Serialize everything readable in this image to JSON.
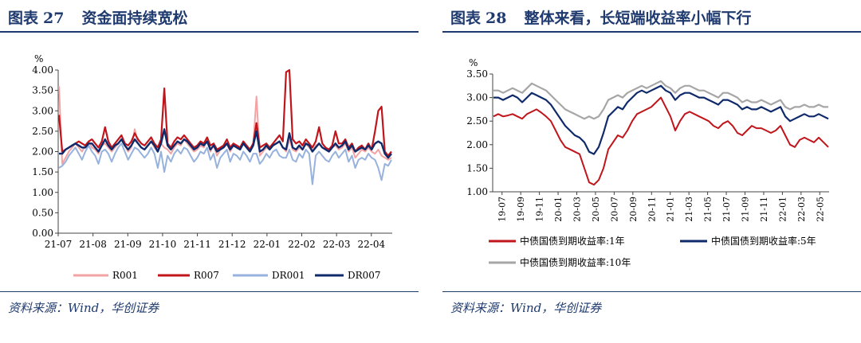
{
  "left": {
    "title_prefix": "图表",
    "title_num": "27",
    "title_text": "资金面持续宽松",
    "source": "资料来源：Wind，华创证券",
    "chart_data": {
      "type": "line",
      "ylabel": "%",
      "ylim": [
        0,
        4
      ],
      "yticks": [
        "0.00",
        "0.50",
        "1.00",
        "1.50",
        "2.00",
        "2.50",
        "3.00",
        "3.50",
        "4.00"
      ],
      "xticks": [
        "21-07",
        "21-08",
        "21-09",
        "21-10",
        "21-11",
        "21-12",
        "22-01",
        "22-02",
        "22-03",
        "22-04"
      ],
      "legend_position": "bottom",
      "series": [
        {
          "name": "R001",
          "color": "#f4a3a3",
          "width": 2,
          "values": [
            3.6,
            1.7,
            1.85,
            2.0,
            2.1,
            2.2,
            2.1,
            2.0,
            2.15,
            2.25,
            2.1,
            2.05,
            1.95,
            2.15,
            2.2,
            2.1,
            2.0,
            2.1,
            2.2,
            2.3,
            2.15,
            2.0,
            2.1,
            2.55,
            2.2,
            2.1,
            2.05,
            2.15,
            2.25,
            2.1,
            2.0,
            2.2,
            2.1,
            2.05,
            1.95,
            2.1,
            2.2,
            2.15,
            2.3,
            2.2,
            2.1,
            2.0,
            2.05,
            2.15,
            2.1,
            2.3,
            2.0,
            2.15,
            1.9,
            2.05,
            2.1,
            2.2,
            2.0,
            2.15,
            2.1,
            2.05,
            2.2,
            2.1,
            2.0,
            2.15,
            3.35,
            1.9,
            2.0,
            2.1,
            2.05,
            2.15,
            2.2,
            2.25,
            2.1,
            2.0,
            2.3,
            2.05,
            2.0,
            2.1,
            2.05,
            2.2,
            2.1,
            2.0,
            2.15,
            2.2,
            2.1,
            2.05,
            2.0,
            2.1,
            2.15,
            2.05,
            2.1,
            2.2,
            2.0,
            2.1,
            1.85,
            1.95,
            2.05,
            2.0,
            2.1,
            2.0,
            1.95,
            2.05,
            1.9,
            1.85,
            1.8,
            1.85
          ]
        },
        {
          "name": "R007",
          "color": "#c0151b",
          "width": 2.2,
          "values": [
            2.9,
            2.0,
            2.05,
            2.1,
            2.15,
            2.2,
            2.25,
            2.2,
            2.15,
            2.25,
            2.3,
            2.2,
            2.1,
            2.25,
            2.6,
            2.25,
            2.1,
            2.2,
            2.3,
            2.4,
            2.2,
            2.15,
            2.25,
            2.45,
            2.3,
            2.2,
            2.15,
            2.25,
            2.35,
            2.2,
            2.1,
            2.3,
            3.55,
            2.2,
            2.1,
            2.25,
            2.35,
            2.3,
            2.4,
            2.3,
            2.2,
            2.1,
            2.15,
            2.25,
            2.2,
            2.35,
            2.15,
            2.2,
            2.05,
            2.1,
            2.15,
            2.3,
            2.1,
            2.2,
            2.15,
            2.1,
            2.25,
            2.15,
            2.05,
            2.2,
            2.7,
            2.1,
            2.15,
            2.2,
            2.1,
            2.2,
            2.3,
            2.4,
            2.25,
            3.95,
            4.0,
            2.3,
            2.2,
            2.25,
            2.15,
            2.3,
            2.2,
            2.1,
            2.25,
            2.6,
            2.2,
            2.1,
            2.05,
            2.15,
            2.5,
            2.2,
            2.2,
            2.3,
            2.1,
            2.2,
            2.0,
            2.1,
            2.15,
            2.05,
            2.2,
            2.05,
            2.5,
            3.0,
            3.1,
            2.0,
            1.9,
            2.0
          ]
        },
        {
          "name": "DR001",
          "color": "#97b2dd",
          "width": 2,
          "values": [
            1.6,
            1.65,
            1.75,
            1.9,
            2.0,
            2.1,
            1.95,
            1.8,
            2.0,
            2.15,
            2.0,
            1.9,
            1.7,
            2.0,
            2.05,
            1.95,
            1.75,
            1.95,
            2.1,
            2.2,
            2.0,
            1.8,
            1.95,
            2.1,
            2.05,
            1.95,
            1.85,
            1.95,
            2.1,
            1.95,
            1.6,
            2.0,
            1.5,
            1.9,
            1.75,
            1.95,
            2.05,
            1.95,
            2.1,
            2.05,
            1.9,
            1.75,
            1.85,
            2.0,
            1.95,
            2.1,
            1.8,
            1.95,
            1.6,
            1.85,
            1.95,
            2.05,
            1.75,
            1.95,
            1.9,
            1.8,
            2.0,
            1.9,
            1.75,
            1.95,
            1.95,
            1.7,
            1.8,
            1.95,
            1.85,
            2.0,
            2.05,
            1.9,
            1.85,
            1.85,
            2.05,
            1.8,
            1.75,
            1.95,
            1.85,
            2.05,
            1.95,
            1.2,
            1.9,
            2.0,
            1.9,
            1.8,
            1.75,
            1.9,
            2.0,
            1.85,
            1.95,
            2.05,
            1.75,
            1.9,
            1.6,
            1.8,
            1.85,
            1.8,
            1.95,
            1.85,
            1.8,
            1.6,
            1.3,
            1.7,
            1.65,
            1.8
          ]
        },
        {
          "name": "DR007",
          "color": "#0f2a6b",
          "width": 2.4,
          "values": [
            1.95,
            1.95,
            2.05,
            2.1,
            2.15,
            2.2,
            2.15,
            2.1,
            2.1,
            2.2,
            2.2,
            2.1,
            2.0,
            2.15,
            2.3,
            2.15,
            2.05,
            2.15,
            2.2,
            2.3,
            2.15,
            2.05,
            2.15,
            2.3,
            2.2,
            2.1,
            2.05,
            2.15,
            2.25,
            2.15,
            2.0,
            2.2,
            2.55,
            2.15,
            2.05,
            2.15,
            2.25,
            2.2,
            2.3,
            2.25,
            2.15,
            2.05,
            2.1,
            2.2,
            2.15,
            2.25,
            2.05,
            2.15,
            2.0,
            2.05,
            2.1,
            2.2,
            2.05,
            2.15,
            2.1,
            2.05,
            2.2,
            2.1,
            2.0,
            2.15,
            2.5,
            2.0,
            2.05,
            2.15,
            2.05,
            2.15,
            2.2,
            2.25,
            2.1,
            2.05,
            2.45,
            2.1,
            2.05,
            2.15,
            2.05,
            2.2,
            2.15,
            2.0,
            2.1,
            2.2,
            2.1,
            2.05,
            2.0,
            2.1,
            2.2,
            2.1,
            2.15,
            2.25,
            2.05,
            2.15,
            2.0,
            2.05,
            2.1,
            2.05,
            2.15,
            2.05,
            2.2,
            2.25,
            2.2,
            1.95,
            1.85,
            1.95
          ]
        }
      ]
    }
  },
  "right": {
    "title_prefix": "图表",
    "title_num": "28",
    "title_text": "整体来看，长短端收益率小幅下行",
    "source": "资料来源：Wind，华创证券",
    "chart_data": {
      "type": "line",
      "ylabel": "%",
      "ylim": [
        1,
        3.5
      ],
      "yticks": [
        "1.00",
        "1.50",
        "2.00",
        "2.50",
        "3.00",
        "3.50"
      ],
      "xticks": [
        "19-07",
        "19-09",
        "19-11",
        "20-01",
        "20-03",
        "20-05",
        "20-07",
        "20-09",
        "20-11",
        "21-01",
        "21-03",
        "21-05",
        "21-07",
        "21-09",
        "21-11",
        "22-01",
        "22-03",
        "22-05"
      ],
      "legend_position": "bottom",
      "series": [
        {
          "name": "中债国债到期收益率:1年",
          "color": "#c0151b",
          "width": 2,
          "values": [
            2.6,
            2.65,
            2.6,
            2.62,
            2.65,
            2.6,
            2.55,
            2.65,
            2.7,
            2.75,
            2.68,
            2.6,
            2.5,
            2.3,
            2.1,
            1.95,
            1.9,
            1.85,
            1.8,
            1.5,
            1.2,
            1.15,
            1.25,
            1.5,
            1.9,
            2.05,
            2.2,
            2.15,
            2.3,
            2.5,
            2.65,
            2.7,
            2.75,
            2.8,
            2.9,
            3.0,
            2.8,
            2.6,
            2.3,
            2.5,
            2.65,
            2.7,
            2.65,
            2.6,
            2.55,
            2.5,
            2.4,
            2.35,
            2.45,
            2.5,
            2.4,
            2.25,
            2.2,
            2.3,
            2.4,
            2.35,
            2.35,
            2.3,
            2.25,
            2.3,
            2.4,
            2.2,
            2.0,
            1.95,
            2.1,
            2.15,
            2.1,
            2.05,
            2.15,
            2.05,
            1.95
          ]
        },
        {
          "name": "中债国债到期收益率:5年",
          "color": "#0f2a6b",
          "width": 2.2,
          "values": [
            3.0,
            3.0,
            2.95,
            3.0,
            3.05,
            3.0,
            2.9,
            3.0,
            3.1,
            3.05,
            3.0,
            2.95,
            2.85,
            2.7,
            2.55,
            2.4,
            2.3,
            2.2,
            2.15,
            2.05,
            1.85,
            1.8,
            1.95,
            2.25,
            2.6,
            2.7,
            2.8,
            2.75,
            2.9,
            3.0,
            3.1,
            3.15,
            3.1,
            3.15,
            3.2,
            3.25,
            3.15,
            3.1,
            2.95,
            3.05,
            3.1,
            3.1,
            3.05,
            3.0,
            3.0,
            2.95,
            2.9,
            2.85,
            2.95,
            2.95,
            2.9,
            2.85,
            2.75,
            2.8,
            2.75,
            2.75,
            2.8,
            2.75,
            2.7,
            2.75,
            2.8,
            2.6,
            2.5,
            2.55,
            2.6,
            2.65,
            2.6,
            2.6,
            2.65,
            2.6,
            2.55
          ]
        },
        {
          "name": "中债国债到期收益率:10年",
          "color": "#a6a6a6",
          "width": 2.2,
          "values": [
            3.15,
            3.15,
            3.1,
            3.15,
            3.2,
            3.15,
            3.1,
            3.2,
            3.3,
            3.25,
            3.2,
            3.15,
            3.05,
            2.95,
            2.85,
            2.75,
            2.7,
            2.65,
            2.6,
            2.55,
            2.6,
            2.55,
            2.6,
            2.75,
            2.95,
            3.0,
            3.05,
            3.0,
            3.1,
            3.15,
            3.2,
            3.25,
            3.2,
            3.25,
            3.3,
            3.35,
            3.25,
            3.2,
            3.1,
            3.2,
            3.25,
            3.25,
            3.2,
            3.15,
            3.15,
            3.1,
            3.05,
            3.0,
            3.1,
            3.1,
            3.05,
            3.0,
            2.9,
            2.95,
            2.9,
            2.9,
            2.95,
            2.9,
            2.85,
            2.9,
            2.95,
            2.8,
            2.75,
            2.8,
            2.8,
            2.85,
            2.8,
            2.8,
            2.85,
            2.8,
            2.8
          ]
        }
      ]
    }
  }
}
